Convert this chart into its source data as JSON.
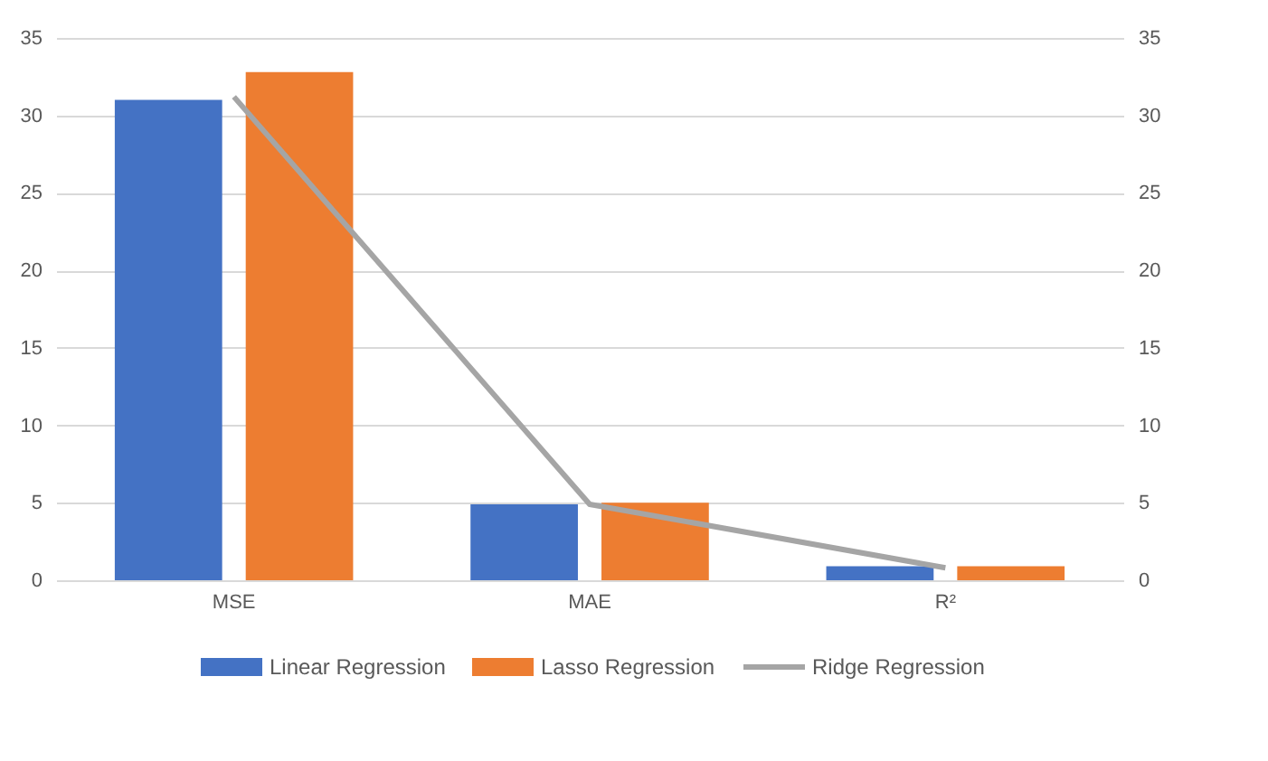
{
  "chart_data": {
    "type": "bar",
    "categories": [
      "MSE",
      "MAE",
      "R²"
    ],
    "series": [
      {
        "name": "Linear Regression",
        "color": "#4472c4",
        "values": [
          31.0,
          4.9,
          0.9
        ]
      },
      {
        "name": "Lasso Regression",
        "color": "#ed7d31",
        "values": [
          32.8,
          5.0,
          0.9
        ]
      },
      {
        "name": "Ridge Regression",
        "color": "#a5a5a5",
        "type": "line",
        "axis": "y2",
        "values": [
          31.2,
          4.9,
          0.8
        ]
      }
    ],
    "ylim": [
      0,
      35
    ],
    "yticks": [
      0,
      5,
      10,
      15,
      20,
      25,
      30,
      35
    ],
    "y2lim": [
      0,
      35
    ],
    "y2ticks": [
      0,
      5,
      10,
      15,
      20,
      25,
      30,
      35
    ],
    "grid": "y",
    "legend": "bottom",
    "marker": "none",
    "line_style": "solid"
  }
}
